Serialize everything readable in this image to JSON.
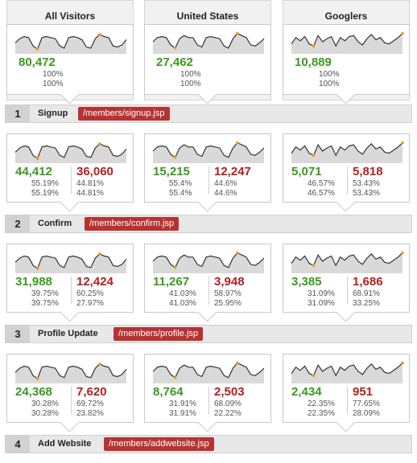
{
  "segments": [
    "All Visitors",
    "United States",
    "Googlers"
  ],
  "steps": [
    {
      "num": "1",
      "name": "Signup",
      "page": "/members/signup.jsp"
    },
    {
      "num": "2",
      "name": "Confirm",
      "page": "/members/confirm.jsp"
    },
    {
      "num": "3",
      "name": "Profile Update",
      "page": "/members/profile.jsp"
    },
    {
      "num": "4",
      "name": "Add Website",
      "page": "/members/addwebsite.jsp"
    }
  ],
  "rows": [
    [
      {
        "v1": "80,472",
        "p1a": "100%",
        "p1b": "100%"
      },
      {
        "v1": "27,462",
        "p1a": "100%",
        "p1b": "100%"
      },
      {
        "v1": "10,889",
        "p1a": "100%",
        "p1b": "100%"
      }
    ],
    [
      {
        "v1": "44,412",
        "p1a": "55.19%",
        "p1b": "55.19%",
        "v2": "36,060",
        "p2a": "44.81%",
        "p2b": "44.81%"
      },
      {
        "v1": "15,215",
        "p1a": "55.4%",
        "p1b": "55.4%",
        "v2": "12,247",
        "p2a": "44.6%",
        "p2b": "44.6%"
      },
      {
        "v1": "5,071",
        "p1a": "46.57%",
        "p1b": "46.57%",
        "v2": "5,818",
        "p2a": "53.43%",
        "p2b": "53.43%"
      }
    ],
    [
      {
        "v1": "31,988",
        "p1a": "39.75%",
        "p1b": "39.75%",
        "v2": "12,424",
        "p2a": "60.25%",
        "p2b": "27.97%"
      },
      {
        "v1": "11,267",
        "p1a": "41.03%",
        "p1b": "41.03%",
        "v2": "3,948",
        "p2a": "58.97%",
        "p2b": "25.95%"
      },
      {
        "v1": "3,385",
        "p1a": "31.09%",
        "p1b": "31.09%",
        "v2": "1,686",
        "p2a": "68.91%",
        "p2b": "33.25%"
      }
    ],
    [
      {
        "v1": "24,368",
        "p1a": "30.28%",
        "p1b": "30.28%",
        "v2": "7,620",
        "p2a": "69.72%",
        "p2b": "23.82%"
      },
      {
        "v1": "8,764",
        "p1a": "31.91%",
        "p1b": "31.91%",
        "v2": "2,503",
        "p2a": "68.09%",
        "p2b": "22.22%"
      },
      {
        "v1": "2,434",
        "p1a": "22.35%",
        "p1b": "22.35%",
        "v2": "951",
        "p2a": "77.65%",
        "p2b": "28.09%"
      }
    ]
  ],
  "colors": {
    "positive": "#3a9a1e",
    "negative": "#b41e1e",
    "step_page": "#b63332",
    "spark_fill": "#d9d9d9",
    "spark_dot": "#f39c12"
  }
}
